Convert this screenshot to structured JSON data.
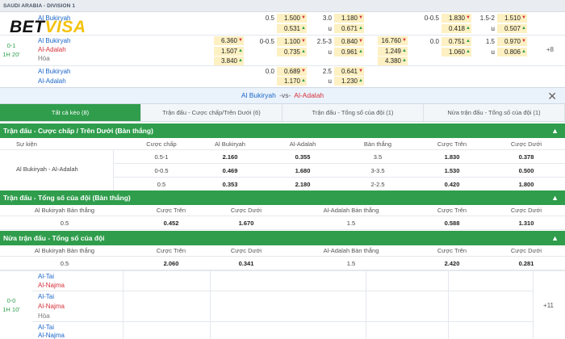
{
  "league": "SAUDI ARABIA - DIVISION 1",
  "logo": {
    "part1": "BET",
    "part2": "VISA"
  },
  "top_rows": {
    "row1": {
      "team_home": "Al Bukiryah",
      "h1": "0.5",
      "o1": "1.500",
      "o2": "0.531",
      "h2": "3.0",
      "o3": "1.180",
      "u_label": "u",
      "o4": "0.671",
      "h3": "0-0.5",
      "o5": "1.830",
      "o6": "0.418",
      "h4": "1.5-2",
      "o7": "1.510",
      "o8": "0.507"
    },
    "row2": {
      "team_home": "Al Bukiryah",
      "team_away": "Al-Adalah",
      "draw": "Hòa",
      "score": "0-1",
      "time": "1H 20'",
      "x1": "6.360",
      "x2": "1.507",
      "x3": "3.840",
      "h1": "0-0.5",
      "o1": "1.100",
      "o2": "0.735",
      "h2": "2.5-3",
      "o3": "0.840",
      "o4": "0.961",
      "x4": "16.760",
      "x5": "1.249",
      "x6": "4.380",
      "h3": "0.0",
      "o5": "0.751",
      "o6": "1.060",
      "h4": "1.5",
      "o7": "0.970",
      "o8": "0.806",
      "more": "+8"
    },
    "row3": {
      "team_home": "Al Bukiryah",
      "team_away": "Al-Adalah",
      "h1": "0.0",
      "o1": "0.689",
      "o2": "1.170",
      "h2": "2.5",
      "o3": "0.641",
      "o4": "1.230"
    }
  },
  "match_bar": {
    "home": "Al Bukiryah",
    "vs": "-vs-",
    "away": "Al-Adalah"
  },
  "tabs": [
    "Tất cả kèo (8)",
    "Trận đấu - Cược chấp/Trên Dưới (6)",
    "Trận đấu - Tổng số của đội (1)",
    "Nửa trận đấu - Tổng số của đội (1)"
  ],
  "section1": {
    "title": "Trận đấu - Cược chấp / Trên Dưới (Bàn thắng)",
    "headers": [
      "Sự kiện",
      "Cược chấp",
      "Al Bukiryah",
      "Al-Adalah",
      "Bàn thắng",
      "Cược Trên",
      "Cược Dưới"
    ],
    "event": "Al Bukiryah - Al-Adalah",
    "rows": [
      [
        "0.5-1",
        "2.160",
        "0.355",
        "3.5",
        "1.830",
        "0.378"
      ],
      [
        "0-0.5",
        "0.469",
        "1.680",
        "3-3.5",
        "1.530",
        "0.500"
      ],
      [
        "0.5",
        "0.353",
        "2.180",
        "2-2.5",
        "0.420",
        "1.800"
      ]
    ]
  },
  "section2": {
    "title": "Trận đấu - Tổng số của đội (Bàn thắng)",
    "headers": [
      "Al Bukiryah Bàn thắng",
      "Cược Trên",
      "Cược Dưới",
      "Al-Adalah Bàn thắng",
      "Cược Trên",
      "Cược Dưới"
    ],
    "row": [
      "0.5",
      "0.452",
      "1.670",
      "1.5",
      "0.588",
      "1.310"
    ]
  },
  "section3": {
    "title": "Nửa trận đấu - Tổng số của đội",
    "headers": [
      "Al Bukiryah Bàn thắng",
      "Cược Trên",
      "Cược Dưới",
      "Al-Adalah Bàn thắng",
      "Cược Trên",
      "Cược Dưới"
    ],
    "row": [
      "0.5",
      "2.060",
      "0.341",
      "1.5",
      "2.420",
      "0.281"
    ]
  },
  "bottom": {
    "score": "0-0",
    "time": "1H 10'",
    "teams": [
      "Al-Tai",
      "Al-Najma",
      "Al-Tai",
      "Al-Najma",
      "Hòa",
      "Al-Tai",
      "Al-Najma"
    ],
    "more": "+11"
  },
  "colors": {
    "accent_green": "#2f9d4c",
    "odd_bg": "#fdf0c2",
    "home_blue": "#1b66c9",
    "away_red": "#d6303a"
  }
}
